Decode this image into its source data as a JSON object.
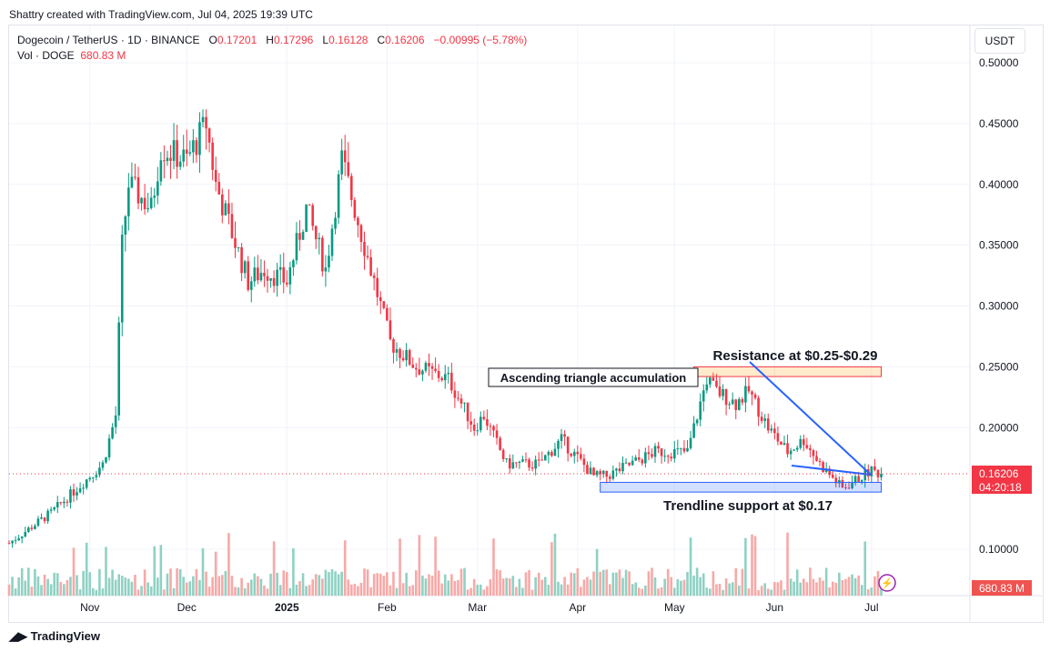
{
  "credit": "Shattry created with TradingView.com, Jul 04, 2025 19:39 UTC",
  "legend": {
    "symbol": "Dogecoin / TetherUS · 1D · BINANCE",
    "o_label": "O",
    "o": "0.17201",
    "h_label": "H",
    "h": "0.17296",
    "l_label": "L",
    "l": "0.16128",
    "c_label": "C",
    "c": "0.16206",
    "change": "−0.00995 (−5.78%)",
    "vol_label": "Vol · DOGE",
    "vol": "680.83 M"
  },
  "currency": "USDT",
  "price_tag": {
    "price": "0.16206",
    "countdown": "04:20:18",
    "volume": "680.83 M"
  },
  "brand": "TradingView",
  "colors": {
    "up": "#089981",
    "down": "#f23645",
    "trend": "#2962ff"
  },
  "chart_data": {
    "type": "candlestick",
    "y_ticks": [
      "0.50000",
      "0.45000",
      "0.40000",
      "0.35000",
      "0.30000",
      "0.25000",
      "0.20000",
      "0.10000"
    ],
    "y_tick_values": [
      0.5,
      0.45,
      0.4,
      0.35,
      0.3,
      0.25,
      0.2,
      0.1
    ],
    "ylim": [
      0.09,
      0.52
    ],
    "x_ticks": [
      {
        "label": "Nov",
        "day": 25
      },
      {
        "label": "Dec",
        "day": 55
      },
      {
        "label": "2025",
        "day": 86
      },
      {
        "label": "Feb",
        "day": 117
      },
      {
        "label": "Mar",
        "day": 145
      },
      {
        "label": "Apr",
        "day": 176
      },
      {
        "label": "May",
        "day": 206
      },
      {
        "label": "Jun",
        "day": 237
      },
      {
        "label": "Jul",
        "day": 267
      }
    ],
    "close_anchors": [
      [
        0,
        0.105
      ],
      [
        13,
        0.13
      ],
      [
        21,
        0.15
      ],
      [
        25,
        0.16
      ],
      [
        29,
        0.17
      ],
      [
        33,
        0.21
      ],
      [
        35,
        0.35
      ],
      [
        37,
        0.4
      ],
      [
        44,
        0.38
      ],
      [
        47,
        0.43
      ],
      [
        55,
        0.42
      ],
      [
        61,
        0.45
      ],
      [
        64,
        0.4
      ],
      [
        74,
        0.32
      ],
      [
        79,
        0.33
      ],
      [
        86,
        0.32
      ],
      [
        92,
        0.38
      ],
      [
        98,
        0.33
      ],
      [
        103,
        0.42
      ],
      [
        110,
        0.35
      ],
      [
        118,
        0.27
      ],
      [
        126,
        0.25
      ],
      [
        136,
        0.24
      ],
      [
        144,
        0.2
      ],
      [
        147,
        0.21
      ],
      [
        154,
        0.17
      ],
      [
        164,
        0.17
      ],
      [
        171,
        0.19
      ],
      [
        181,
        0.16
      ],
      [
        185,
        0.16
      ],
      [
        200,
        0.18
      ],
      [
        210,
        0.18
      ],
      [
        214,
        0.22
      ],
      [
        216,
        0.24
      ],
      [
        219,
        0.23
      ],
      [
        225,
        0.22
      ],
      [
        229,
        0.23
      ],
      [
        235,
        0.2
      ],
      [
        241,
        0.18
      ],
      [
        246,
        0.19
      ],
      [
        251,
        0.17
      ],
      [
        258,
        0.15
      ],
      [
        264,
        0.16
      ],
      [
        267,
        0.165
      ],
      [
        270,
        0.162
      ]
    ],
    "last_price": 0.16206,
    "annotations": [
      {
        "text": "Resistance at $0.25-$0.29",
        "zone": [
          0.242,
          0.25
        ],
        "day_range": [
          212,
          270
        ]
      },
      {
        "text": "Ascending triangle accumulation"
      },
      {
        "text": "Trendline support at $0.17",
        "zone": [
          0.147,
          0.155
        ],
        "day_range": [
          183,
          270
        ]
      }
    ]
  }
}
